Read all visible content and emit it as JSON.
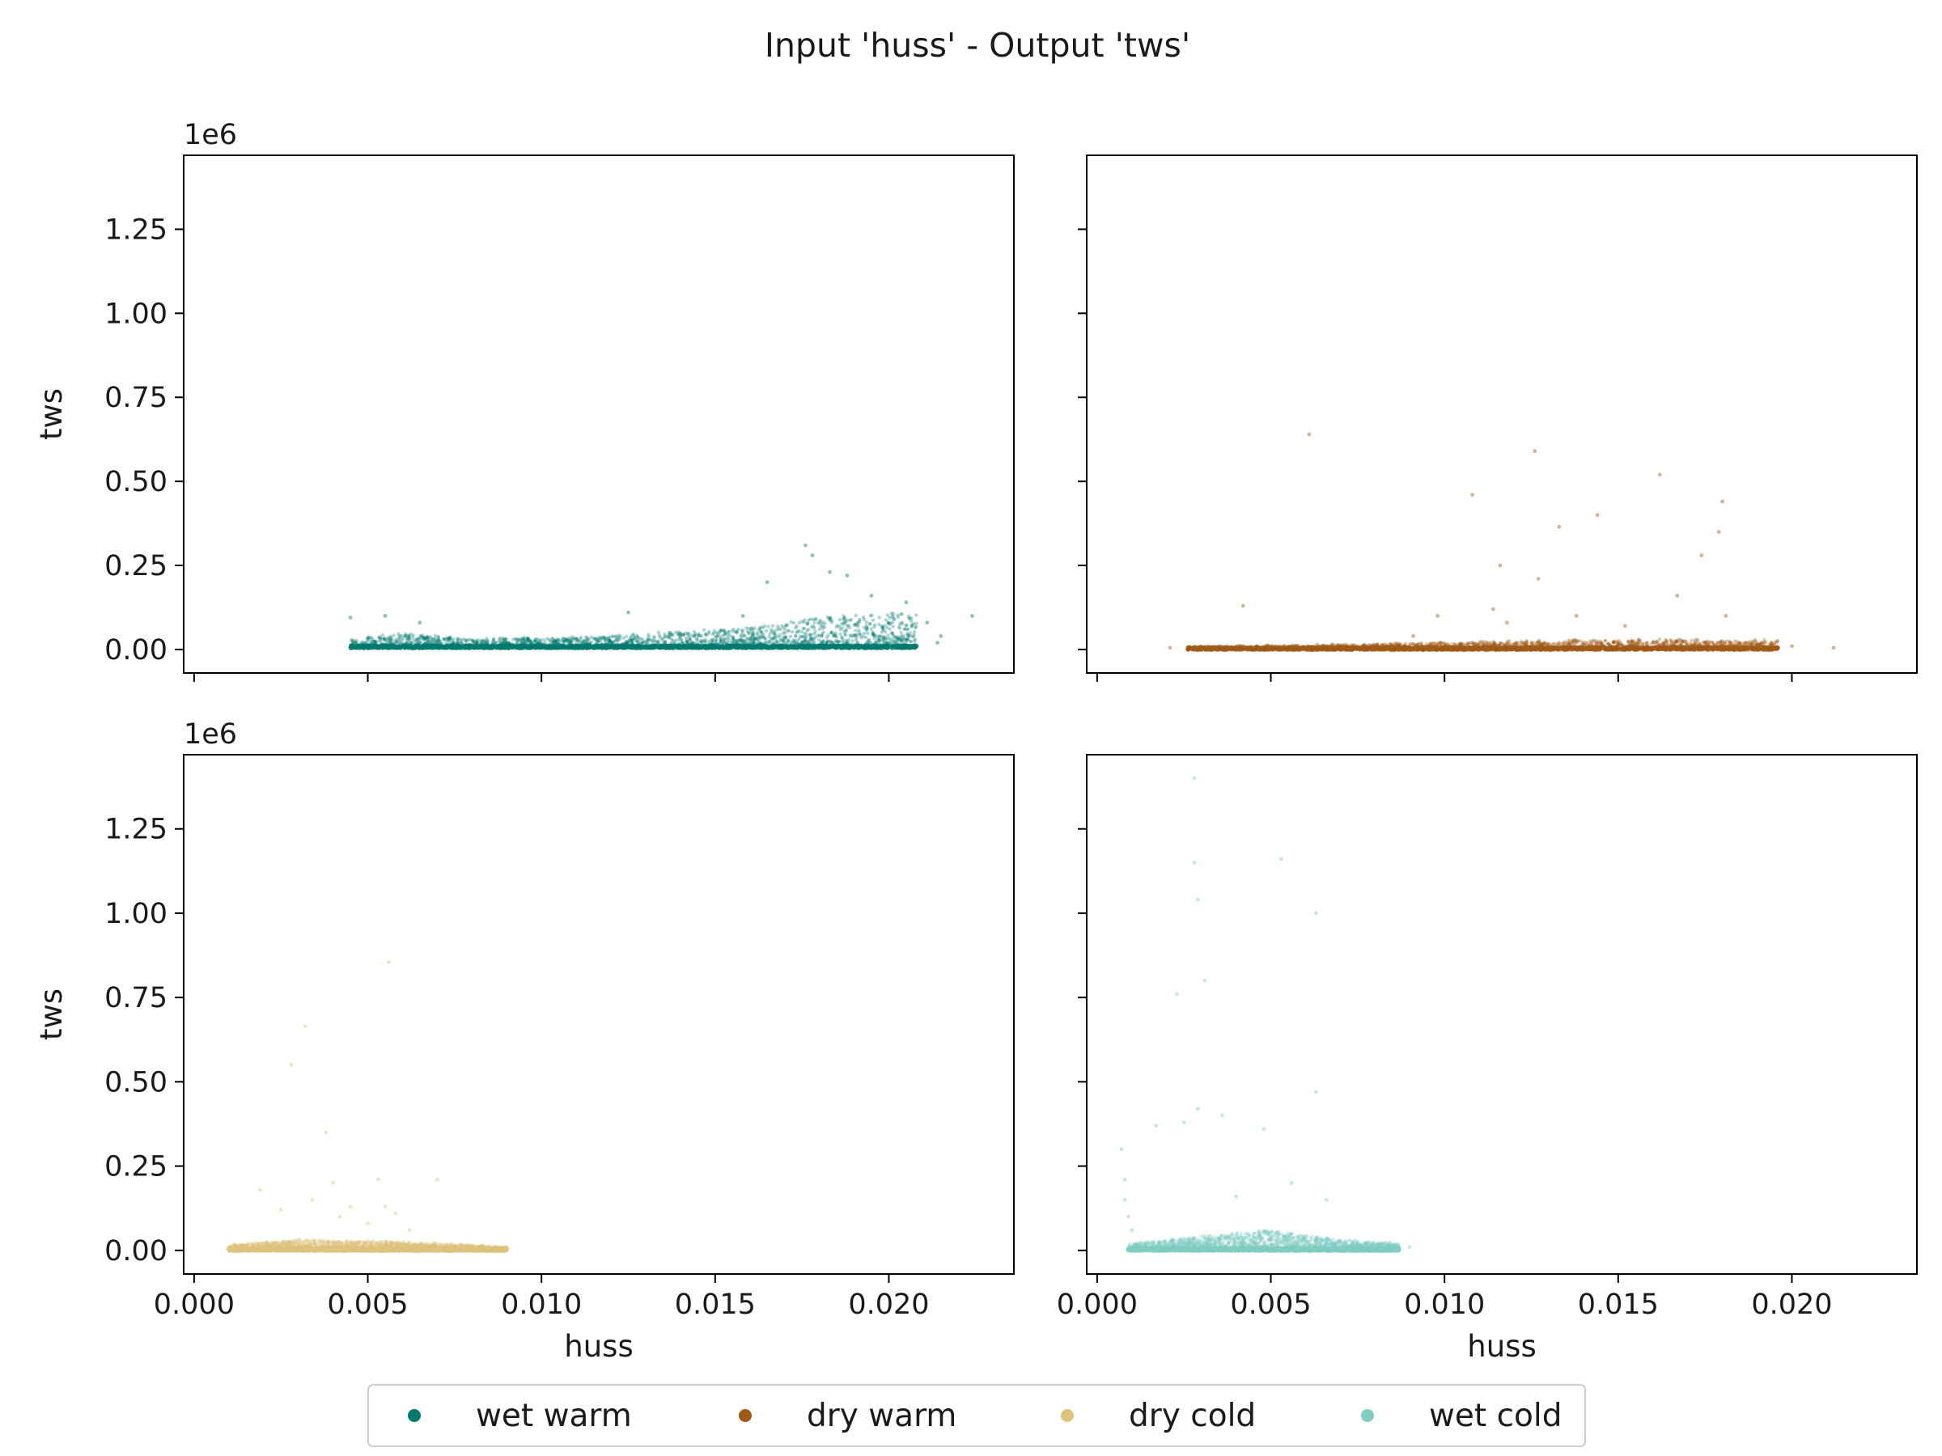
{
  "figure": {
    "title": "Input 'huss' - Output 'tws'"
  },
  "axes_common": {
    "xlabel": "huss",
    "ylabel": "tws",
    "xlim": [
      -0.0003,
      0.0236
    ],
    "ylim": [
      -70000,
      1470000
    ],
    "y_offset_label": "1e6",
    "xticks": [
      0.0,
      0.005,
      0.01,
      0.015,
      0.02
    ],
    "xtick_labels": [
      "0.000",
      "0.005",
      "0.010",
      "0.015",
      "0.020"
    ],
    "yticks": [
      0,
      250000,
      500000,
      750000,
      1000000,
      1250000
    ],
    "ytick_labels": [
      "0.00",
      "0.25",
      "0.50",
      "0.75",
      "1.00",
      "1.25"
    ]
  },
  "legend": {
    "placement": "bottom-center",
    "items": [
      {
        "label": "wet warm",
        "color": "#01796f"
      },
      {
        "label": "dry warm",
        "color": "#a05a18"
      },
      {
        "label": "dry cold",
        "color": "#dfc27d"
      },
      {
        "label": "wet cold",
        "color": "#80cdc1"
      }
    ]
  },
  "chart_data": [
    {
      "type": "scatter",
      "panel": "top-left",
      "series_name": "wet warm",
      "color": "#01796f",
      "xlabel": "",
      "ylabel": "tws",
      "show_x_tick_labels": false,
      "show_y_tick_labels": true,
      "show_offset": true,
      "cluster": {
        "x_range": [
          0.0045,
          0.0208
        ],
        "base": 5000,
        "band_envelope": [
          [
            0.0045,
            25000
          ],
          [
            0.006,
            45000
          ],
          [
            0.008,
            25000
          ],
          [
            0.012,
            35000
          ],
          [
            0.016,
            60000
          ],
          [
            0.018,
            90000
          ],
          [
            0.0205,
            110000
          ]
        ],
        "density": 0.7
      },
      "outliers": [
        [
          0.0045,
          95000
        ],
        [
          0.0055,
          100000
        ],
        [
          0.0065,
          80000
        ],
        [
          0.0125,
          110000
        ],
        [
          0.0158,
          100000
        ],
        [
          0.0165,
          200000
        ],
        [
          0.0176,
          310000
        ],
        [
          0.0178,
          280000
        ],
        [
          0.0183,
          230000
        ],
        [
          0.0188,
          220000
        ],
        [
          0.0195,
          160000
        ],
        [
          0.0205,
          140000
        ],
        [
          0.0215,
          40000
        ],
        [
          0.0224,
          100000
        ],
        [
          0.0214,
          20000
        ],
        [
          0.0211,
          80000
        ]
      ]
    },
    {
      "type": "scatter",
      "panel": "top-right",
      "series_name": "dry warm",
      "color": "#a05a18",
      "xlabel": "",
      "ylabel": "",
      "show_x_tick_labels": false,
      "show_y_tick_labels": false,
      "show_offset": false,
      "cluster": {
        "x_range": [
          0.0026,
          0.0196
        ],
        "base": 0,
        "band_envelope": [
          [
            0.0026,
            8000
          ],
          [
            0.008,
            15000
          ],
          [
            0.012,
            25000
          ],
          [
            0.016,
            30000
          ],
          [
            0.0196,
            25000
          ]
        ],
        "density": 0.75
      },
      "outliers": [
        [
          0.0021,
          5000
        ],
        [
          0.0042,
          130000
        ],
        [
          0.0061,
          640000
        ],
        [
          0.0091,
          40000
        ],
        [
          0.0098,
          100000
        ],
        [
          0.0108,
          460000
        ],
        [
          0.0114,
          120000
        ],
        [
          0.0116,
          250000
        ],
        [
          0.0118,
          80000
        ],
        [
          0.0126,
          590000
        ],
        [
          0.0127,
          210000
        ],
        [
          0.0133,
          365000
        ],
        [
          0.0138,
          100000
        ],
        [
          0.0144,
          400000
        ],
        [
          0.0152,
          70000
        ],
        [
          0.0162,
          520000
        ],
        [
          0.0167,
          160000
        ],
        [
          0.0174,
          280000
        ],
        [
          0.0179,
          350000
        ],
        [
          0.018,
          440000
        ],
        [
          0.0181,
          100000
        ],
        [
          0.02,
          10000
        ],
        [
          0.0212,
          5000
        ]
      ]
    },
    {
      "type": "scatter",
      "panel": "bottom-left",
      "series_name": "dry cold",
      "color": "#dfc27d",
      "xlabel": "huss",
      "ylabel": "tws",
      "show_x_tick_labels": true,
      "show_y_tick_labels": true,
      "show_offset": true,
      "cluster": {
        "x_range": [
          0.001,
          0.009
        ],
        "base": 0,
        "band_envelope": [
          [
            0.001,
            15000
          ],
          [
            0.003,
            30000
          ],
          [
            0.006,
            25000
          ],
          [
            0.009,
            10000
          ]
        ],
        "density": 0.75
      },
      "outliers": [
        [
          0.0019,
          180000
        ],
        [
          0.0025,
          120000
        ],
        [
          0.0028,
          550000
        ],
        [
          0.0032,
          665000
        ],
        [
          0.0034,
          150000
        ],
        [
          0.0038,
          350000
        ],
        [
          0.004,
          200000
        ],
        [
          0.0042,
          100000
        ],
        [
          0.0045,
          130000
        ],
        [
          0.005,
          80000
        ],
        [
          0.0053,
          210000
        ],
        [
          0.0055,
          130000
        ],
        [
          0.0056,
          855000
        ],
        [
          0.0058,
          110000
        ],
        [
          0.007,
          210000
        ],
        [
          0.0062,
          60000
        ]
      ]
    },
    {
      "type": "scatter",
      "panel": "bottom-right",
      "series_name": "wet cold",
      "color": "#80cdc1",
      "xlabel": "huss",
      "ylabel": "",
      "show_x_tick_labels": true,
      "show_y_tick_labels": false,
      "show_offset": false,
      "cluster": {
        "x_range": [
          0.0009,
          0.0087
        ],
        "base": 0,
        "band_envelope": [
          [
            0.0009,
            20000
          ],
          [
            0.003,
            40000
          ],
          [
            0.005,
            60000
          ],
          [
            0.007,
            30000
          ],
          [
            0.0087,
            20000
          ]
        ],
        "density": 0.7
      },
      "outliers": [
        [
          0.0007,
          300000
        ],
        [
          0.0008,
          210000
        ],
        [
          0.0008,
          150000
        ],
        [
          0.0009,
          100000
        ],
        [
          0.001,
          60000
        ],
        [
          0.0017,
          370000
        ],
        [
          0.0023,
          760000
        ],
        [
          0.0025,
          380000
        ],
        [
          0.0028,
          1400000
        ],
        [
          0.0028,
          1150000
        ],
        [
          0.0029,
          1040000
        ],
        [
          0.0029,
          420000
        ],
        [
          0.0031,
          800000
        ],
        [
          0.0036,
          400000
        ],
        [
          0.004,
          160000
        ],
        [
          0.0048,
          360000
        ],
        [
          0.0053,
          1160000
        ],
        [
          0.0056,
          200000
        ],
        [
          0.0063,
          1000000
        ],
        [
          0.0063,
          470000
        ],
        [
          0.0066,
          150000
        ],
        [
          0.009,
          10000
        ]
      ]
    }
  ]
}
